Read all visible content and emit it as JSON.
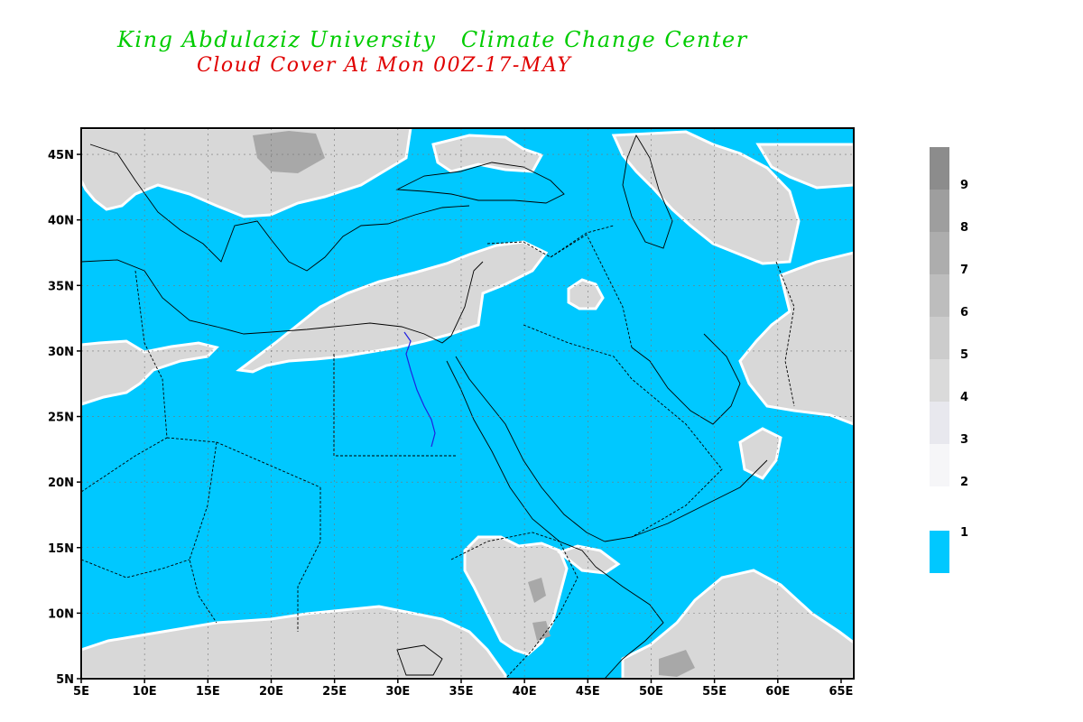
{
  "header": {
    "title_left": "King Abdulaziz University",
    "title_right": "Climate Change Center",
    "subtitle": "Cloud Cover At Mon 00Z-17-MAY"
  },
  "map": {
    "lon_range": [
      5,
      66
    ],
    "lat_range": [
      5,
      47
    ],
    "x_ticks": [
      "5E",
      "10E",
      "15E",
      "20E",
      "25E",
      "30E",
      "35E",
      "40E",
      "45E",
      "50E",
      "55E",
      "60E",
      "65E"
    ],
    "x_tick_values": [
      5,
      10,
      15,
      20,
      25,
      30,
      35,
      40,
      45,
      50,
      55,
      60,
      65
    ],
    "y_ticks": [
      "45N",
      "40N",
      "35N",
      "30N",
      "25N",
      "20N",
      "15N",
      "10N",
      "5N"
    ],
    "y_tick_values": [
      45,
      40,
      35,
      30,
      25,
      20,
      15,
      10,
      5
    ],
    "colors": {
      "clear": "#00c8ff",
      "cloud_light": "#d8d8d8",
      "cloud_dark": "#a0a0a0"
    }
  },
  "legend": {
    "levels": [
      {
        "label": "9",
        "color": "#8c8c8c"
      },
      {
        "label": "8",
        "color": "#9e9e9e"
      },
      {
        "label": "7",
        "color": "#adadad"
      },
      {
        "label": "6",
        "color": "#bdbdbd"
      },
      {
        "label": "5",
        "color": "#cccccc"
      },
      {
        "label": "4",
        "color": "#dadada"
      },
      {
        "label": "3",
        "color": "#e8e8ee"
      },
      {
        "label": "2",
        "color": "#f6f6f8"
      },
      {
        "label": "1",
        "color": "#00c8ff"
      }
    ]
  }
}
